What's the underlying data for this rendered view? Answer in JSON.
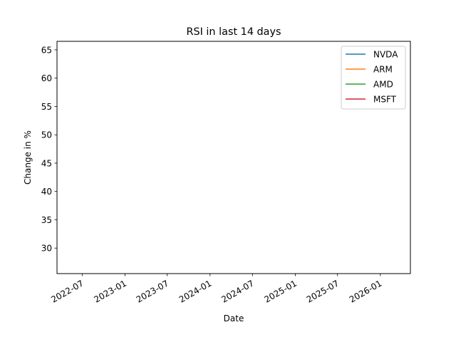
{
  "chart_data": {
    "type": "line",
    "title": "RSI in last 14 days",
    "xlabel": "Date",
    "ylabel": "Change in %",
    "x_tick_labels": [
      "2022-07",
      "2023-01",
      "2023-07",
      "2024-01",
      "2024-07",
      "2025-01",
      "2025-07",
      "2026-01"
    ],
    "y_tick_labels": [
      "30",
      "35",
      "40",
      "45",
      "50",
      "55",
      "60",
      "65"
    ],
    "xlim": [
      "2022-03-15",
      "2026-05-10"
    ],
    "ylim": [
      25.5,
      66.5
    ],
    "grid": false,
    "legend_position": "top-right",
    "series": [
      {
        "name": "NVDA",
        "color": "#1f77b4",
        "values": []
      },
      {
        "name": "ARM",
        "color": "#ff7f0e",
        "values": []
      },
      {
        "name": "AMD",
        "color": "#2ca02c",
        "values": []
      },
      {
        "name": "MSFT",
        "color": "#d62728",
        "values": []
      }
    ]
  }
}
